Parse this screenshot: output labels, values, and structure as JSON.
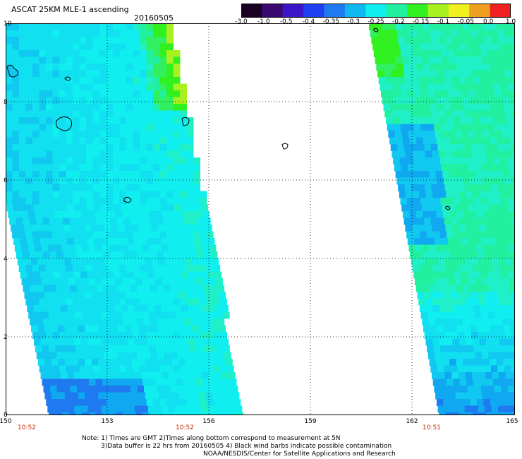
{
  "header": {
    "title": "ASCAT 25KM MLE-1 ascending",
    "date": "20160505"
  },
  "colorbar": {
    "labels": [
      "-3.0",
      "-1.0",
      "-0.5",
      "-0.4",
      "-0.35",
      "-0.3",
      "-0.25",
      "-0.2",
      "-0.15",
      "-0.1",
      "-0.05",
      "0.0",
      "1.0"
    ],
    "colors": [
      "#1a0022",
      "#3a0a70",
      "#3b16c8",
      "#1f3ef0",
      "#1f7af0",
      "#10b8f0",
      "#10eef0",
      "#20f0a0",
      "#30f020",
      "#a8f020",
      "#f0f020",
      "#f0a020",
      "#f02020"
    ]
  },
  "axes": {
    "lon_labels": [
      "150",
      "153",
      "156",
      "159",
      "162",
      "165"
    ],
    "lat_labels": [
      "0",
      "2",
      "4",
      "6",
      "8",
      "10"
    ]
  },
  "swath_times": [
    "10:52",
    "10:52",
    "10:51"
  ],
  "notes": {
    "line1": "Note: 1) Times are GMT 2)Times along bottom correspond to measurement at 5N",
    "line2": "3)Data buffer is 22 hrs from 20160505 4) Black wind barbs indicate possible contamination",
    "line3": "NOAA/NESDIS/Center for Satellite Applications and Research"
  },
  "legend_palette": {
    "blue": "#1f5af0",
    "cyan": "#10eef0",
    "green": "#30f020",
    "yellow": "#f0f020"
  }
}
